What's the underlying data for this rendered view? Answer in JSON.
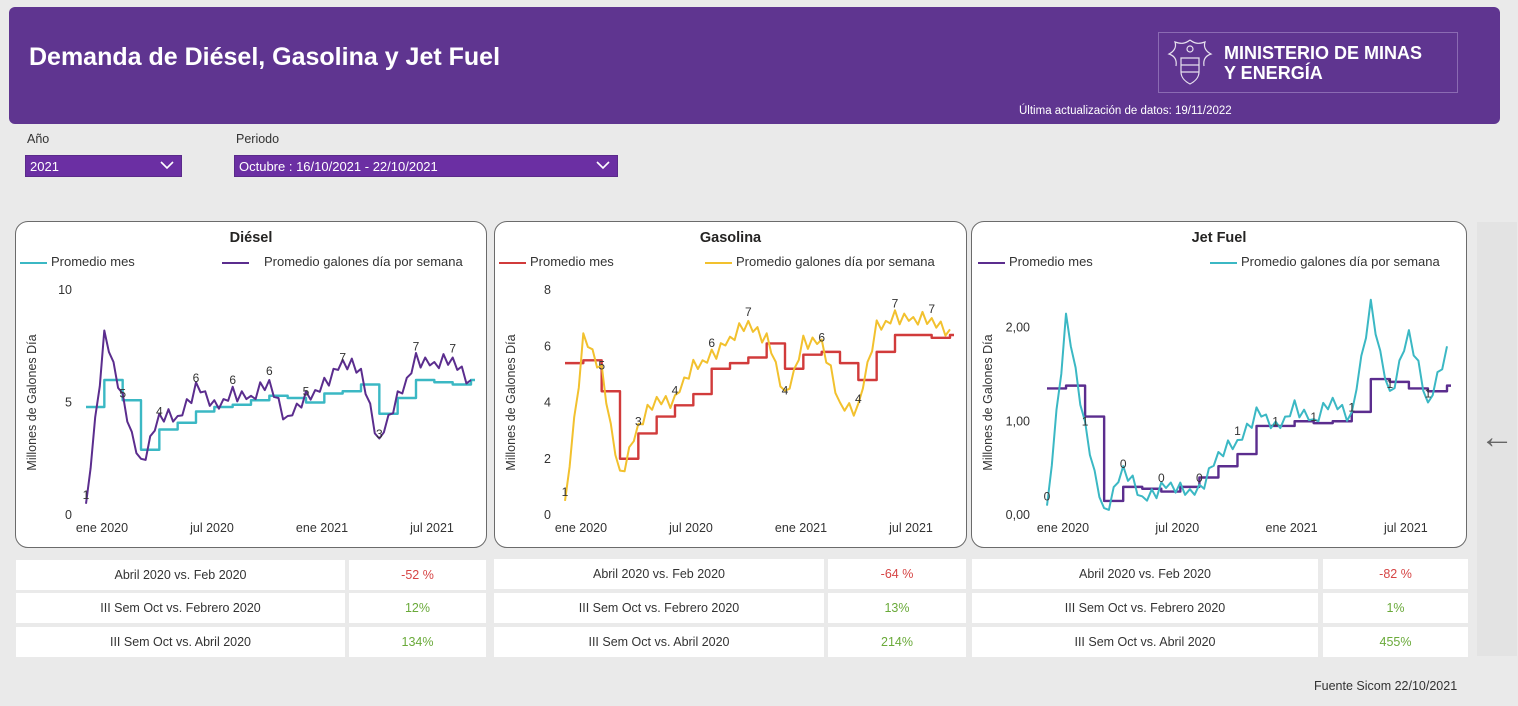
{
  "header": {
    "title": "Demanda de Diésel, Gasolina y Jet Fuel",
    "logo_line1": "MINISTERIO DE MINAS",
    "logo_line2": "Y ENERGÍA",
    "updated": "Última actualización de datos: 19/11/2022"
  },
  "filters": {
    "year_label": "Año",
    "year_value": "2021",
    "period_label": "Periodo",
    "period_value": "Octubre : 16/10/2021 - 22/10/2021"
  },
  "colors": {
    "header": "#5f3590",
    "teal": "#3bb8c4",
    "purple": "#5b2d8e",
    "red": "#d13b3b",
    "yellow": "#f2c12e",
    "negative": "#d64545",
    "positive": "#6aaa3a"
  },
  "chart_data": [
    {
      "type": "line",
      "title": "Diésel",
      "ylabel": "Millones de Galones Día",
      "xlabel": "",
      "x_ticks": [
        "ene 2020",
        "jul 2020",
        "ene 2021",
        "jul 2021"
      ],
      "y_ticks": [
        "0",
        "5",
        "10"
      ],
      "ylim": [
        0,
        10
      ],
      "x": [
        "2020-01",
        "2020-02",
        "2020-03",
        "2020-04",
        "2020-05",
        "2020-06",
        "2020-07",
        "2020-08",
        "2020-09",
        "2020-10",
        "2020-11",
        "2020-12",
        "2021-01",
        "2021-02",
        "2021-03",
        "2021-04",
        "2021-05",
        "2021-06",
        "2021-07",
        "2021-08",
        "2021-09",
        "2021-10"
      ],
      "series": [
        {
          "name": "Promedio mes",
          "color": "#3bb8c4",
          "values": [
            4.8,
            6.0,
            5.1,
            2.9,
            3.8,
            4.1,
            4.6,
            4.8,
            4.9,
            5.1,
            5.3,
            5.2,
            5.0,
            5.4,
            5.5,
            5.8,
            4.5,
            5.2,
            6.0,
            5.9,
            5.8,
            6.0
          ]
        },
        {
          "name": "Promedio galones día por semana",
          "color": "#5b2d8e",
          "values": [
            0.5,
            8.0,
            5.0,
            2.4,
            4.2,
            4.4,
            5.7,
            4.7,
            5.6,
            5.0,
            6.0,
            4.2,
            5.1,
            6.0,
            6.6,
            6.5,
            3.2,
            5.1,
            7.1,
            6.5,
            7.0,
            6.0
          ]
        }
      ]
    },
    {
      "type": "line",
      "title": "Gasolina",
      "ylabel": "Millones de Galones Día",
      "xlabel": "",
      "x_ticks": [
        "ene 2020",
        "jul 2020",
        "ene 2021",
        "jul 2021"
      ],
      "y_ticks": [
        "0",
        "2",
        "4",
        "6",
        "8"
      ],
      "ylim": [
        0,
        8
      ],
      "x": [
        "2020-01",
        "2020-02",
        "2020-03",
        "2020-04",
        "2020-05",
        "2020-06",
        "2020-07",
        "2020-08",
        "2020-09",
        "2020-10",
        "2020-11",
        "2020-12",
        "2021-01",
        "2021-02",
        "2021-03",
        "2021-04",
        "2021-05",
        "2021-06",
        "2021-07",
        "2021-08",
        "2021-09",
        "2021-10"
      ],
      "series": [
        {
          "name": "Promedio mes",
          "color": "#d13b3b",
          "values": [
            5.4,
            5.5,
            4.4,
            2.0,
            2.9,
            3.5,
            3.9,
            4.3,
            5.2,
            5.4,
            5.6,
            6.1,
            5.2,
            5.7,
            5.8,
            5.4,
            4.8,
            5.8,
            6.4,
            6.4,
            6.3,
            6.4
          ]
        },
        {
          "name": "Promedio galones día por semana",
          "color": "#f2c12e",
          "values": [
            0.5,
            6.3,
            5.0,
            1.5,
            3.0,
            4.2,
            4.1,
            5.2,
            5.8,
            6.1,
            6.9,
            6.3,
            4.1,
            6.3,
            6.0,
            4.0,
            3.8,
            6.6,
            7.2,
            6.8,
            7.0,
            6.6
          ]
        }
      ]
    },
    {
      "type": "line",
      "title": "Jet Fuel",
      "ylabel": "Millones de Galones Día",
      "xlabel": "",
      "x_ticks": [
        "ene 2020",
        "jul 2020",
        "ene 2021",
        "jul 2021"
      ],
      "y_ticks": [
        "0,00",
        "1,00",
        "2,00"
      ],
      "ylim": [
        0,
        2.4
      ],
      "x": [
        "2020-01",
        "2020-02",
        "2020-03",
        "2020-04",
        "2020-05",
        "2020-06",
        "2020-07",
        "2020-08",
        "2020-09",
        "2020-10",
        "2020-11",
        "2020-12",
        "2021-01",
        "2021-02",
        "2021-03",
        "2021-04",
        "2021-05",
        "2021-06",
        "2021-07",
        "2021-08",
        "2021-09",
        "2021-10"
      ],
      "series": [
        {
          "name": "Promedio mes",
          "color": "#5b2d8e",
          "values": [
            1.35,
            1.38,
            1.05,
            0.15,
            0.3,
            0.28,
            0.25,
            0.3,
            0.4,
            0.52,
            0.65,
            0.95,
            0.95,
            1.0,
            0.98,
            1.0,
            1.1,
            1.45,
            1.42,
            1.35,
            1.32,
            1.38
          ]
        },
        {
          "name": "Promedio galones día por semana",
          "color": "#3bb8c4",
          "values": [
            0.1,
            2.1,
            0.9,
            0.05,
            0.45,
            0.2,
            0.3,
            0.25,
            0.3,
            0.6,
            0.8,
            1.1,
            0.9,
            1.2,
            0.95,
            1.25,
            1.05,
            2.2,
            1.3,
            1.9,
            1.2,
            1.8
          ]
        }
      ]
    }
  ],
  "stats": [
    {
      "rows": [
        {
          "label": "Abril 2020 vs. Feb 2020",
          "value": "-52 %",
          "sign": "neg"
        },
        {
          "label": "III Sem Oct vs. Febrero 2020",
          "value": "12%",
          "sign": "pos"
        },
        {
          "label": "III Sem Oct vs. Abril 2020",
          "value": "134%",
          "sign": "pos"
        }
      ]
    },
    {
      "rows": [
        {
          "label": "Abril 2020 vs. Feb 2020",
          "value": "-64 %",
          "sign": "neg"
        },
        {
          "label": "III Sem Oct vs. Febrero 2020",
          "value": "13%",
          "sign": "pos"
        },
        {
          "label": "III Sem Oct vs. Abril 2020",
          "value": "214%",
          "sign": "pos"
        }
      ]
    },
    {
      "rows": [
        {
          "label": "Abril 2020 vs. Feb 2020",
          "value": "-82 %",
          "sign": "neg"
        },
        {
          "label": "III Sem Oct vs. Febrero 2020",
          "value": "1%",
          "sign": "pos"
        },
        {
          "label": "III Sem Oct vs. Abril 2020",
          "value": "455%",
          "sign": "pos"
        }
      ]
    }
  ],
  "footer": {
    "source": "Fuente Sicom 22/10/2021"
  },
  "icons": {
    "nav": "arrow-left-icon",
    "dropdown": "chevron-down-icon",
    "logo": "coat-of-arms-icon"
  }
}
